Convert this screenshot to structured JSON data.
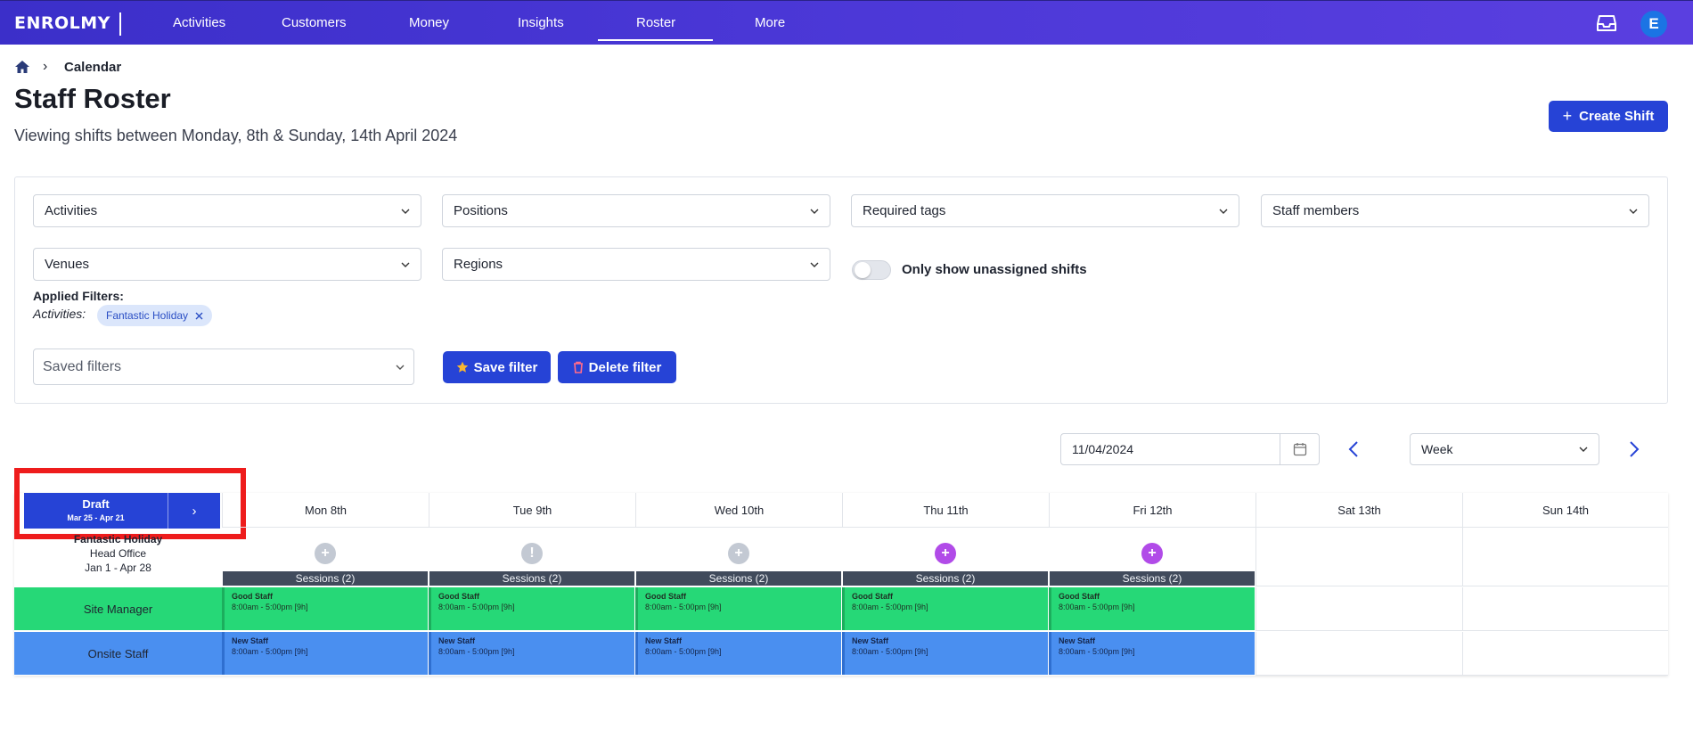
{
  "nav": {
    "logo": "ENROLMY",
    "items": [
      {
        "label": "Activities"
      },
      {
        "label": "Customers"
      },
      {
        "label": "Money"
      },
      {
        "label": "Insights"
      },
      {
        "label": "Roster"
      },
      {
        "label": "More"
      }
    ],
    "active": "Roster",
    "avatar": "E"
  },
  "breadcrumb": {
    "current": "Calendar"
  },
  "header": {
    "title": "Staff Roster",
    "subtitle": "Viewing shifts between Monday, 8th & Sunday, 14th April 2024",
    "create_button": "Create Shift"
  },
  "filters": {
    "activities": "Activities",
    "positions": "Positions",
    "required_tags": "Required tags",
    "staff_members": "Staff members",
    "venues": "Venues",
    "regions": "Regions",
    "toggle_label": "Only show unassigned shifts",
    "toggle_on": false,
    "applied_title": "Applied Filters:",
    "applied_key": "Activities:",
    "applied_chip": "Fantastic Holiday",
    "saved_filters_placeholder": "Saved filters",
    "save_filter": "Save filter",
    "delete_filter": "Delete filter"
  },
  "date_controls": {
    "date": "11/04/2024",
    "view": "Week"
  },
  "draft": {
    "title": "Draft",
    "range": "Mar 25 - Apr 21"
  },
  "days": [
    {
      "label": "Mon 8th"
    },
    {
      "label": "Tue 9th"
    },
    {
      "label": "Wed 10th"
    },
    {
      "label": "Thu 11th"
    },
    {
      "label": "Fri 12th"
    },
    {
      "label": "Sat 13th"
    },
    {
      "label": "Sun 14th"
    }
  ],
  "activity": {
    "name": "Fantastic Holiday",
    "venue": "Head Office",
    "dates": "Jan 1 - Apr 28"
  },
  "sessions_label": "Sessions (2)",
  "roles": [
    {
      "label": "Site Manager",
      "shift_name": "Good Staff",
      "shift_time": "8:00am - 5:00pm [9h]",
      "color": "#26d877"
    },
    {
      "label": "Onsite Staff",
      "shift_name": "New Staff",
      "shift_time": "8:00am - 5:00pm [9h]",
      "color": "#4a8ff0"
    }
  ],
  "colors": {
    "nav": "#4a37d6",
    "primary": "#2643d6",
    "add_grey": "#c3c9d3",
    "add_purple": "#b14be8",
    "highlight": "#ee1c1c"
  }
}
